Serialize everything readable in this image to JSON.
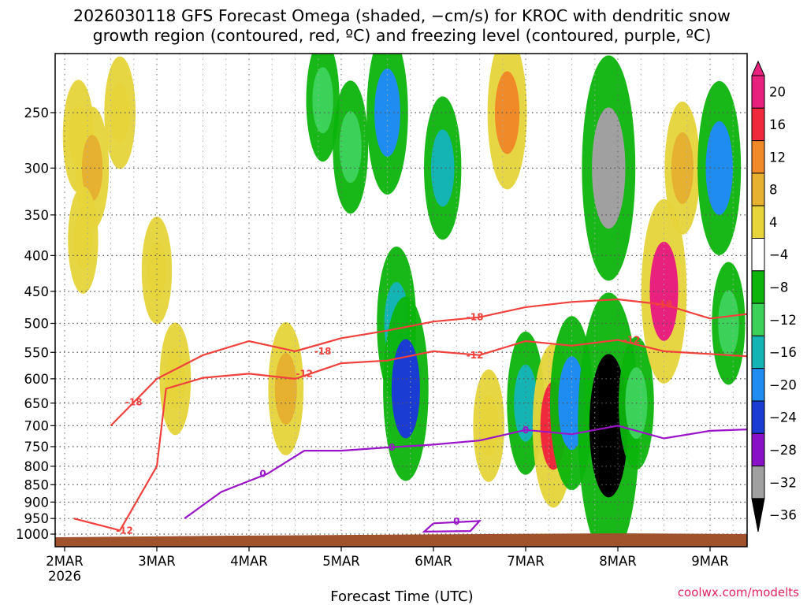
{
  "chart_data": {
    "type": "heatmap",
    "title_lines": [
      "2026030118 GFS Forecast Omega (shaded, −cm/s) for KROC with dendritic snow",
      "growth region (contoured, red, ºC) and freezing level (contoured, purple, ºC)"
    ],
    "xlabel": "Forecast Time (UTC)",
    "ylabel": "",
    "credit": "coolwx.com/modelts",
    "x_range_days": [
      0,
      7.5
    ],
    "x_ticks": [
      {
        "day": 0,
        "label": "2MAR",
        "sub": "2026"
      },
      {
        "day": 1,
        "label": "3MAR"
      },
      {
        "day": 2,
        "label": "4MAR"
      },
      {
        "day": 3,
        "label": "5MAR"
      },
      {
        "day": 4,
        "label": "6MAR"
      },
      {
        "day": 5,
        "label": "7MAR"
      },
      {
        "day": 6,
        "label": "8MAR"
      },
      {
        "day": 7,
        "label": "9MAR"
      }
    ],
    "y_range_hpa": [
      1000,
      200
    ],
    "y_ticks": [
      250,
      300,
      350,
      400,
      450,
      500,
      550,
      600,
      650,
      700,
      750,
      800,
      850,
      900,
      950,
      1000
    ],
    "y_tick_labels": [
      "250",
      "300",
      "350",
      "400",
      "450",
      "500",
      "550",
      "600",
      "650",
      "700",
      "750",
      "800",
      "850",
      "900",
      "950",
      "1000"
    ],
    "colorbar": {
      "labels": [
        "20",
        "16",
        "12",
        "8",
        "4",
        "−4",
        "−8",
        "−12",
        "−16",
        "−20",
        "−24",
        "−28",
        "−32",
        "−36"
      ],
      "colors": [
        "#e8207e",
        "#f02a3c",
        "#f08a28",
        "#e6b030",
        "#e6d43a",
        "#ffffff",
        "#0cb40c",
        "#3cd25a",
        "#14b4b4",
        "#1e8cf0",
        "#1a3cd2",
        "#8a10c8",
        "#a0a0a0",
        "#000000"
      ]
    },
    "contour_labels": [
      "-18",
      "-12",
      "0"
    ],
    "contours": {
      "dgz_top_m18": [
        [
          0.5,
          700
        ],
        [
          1.0,
          600
        ],
        [
          1.5,
          555
        ],
        [
          2.0,
          530
        ],
        [
          2.5,
          548
        ],
        [
          3.0,
          525
        ],
        [
          3.5,
          512
        ],
        [
          4.0,
          497
        ],
        [
          4.5,
          490
        ],
        [
          5.0,
          474
        ],
        [
          5.5,
          466
        ],
        [
          6.0,
          462
        ],
        [
          6.5,
          470
        ],
        [
          7.0,
          492
        ],
        [
          7.5,
          483
        ]
      ],
      "dgz_bottom_m12": [
        [
          0.1,
          950
        ],
        [
          0.6,
          988
        ],
        [
          1.0,
          800
        ],
        [
          1.1,
          620
        ],
        [
          1.5,
          598
        ],
        [
          2.0,
          590
        ],
        [
          2.5,
          600
        ],
        [
          3.0,
          570
        ],
        [
          3.5,
          565
        ],
        [
          4.0,
          548
        ],
        [
          4.5,
          555
        ],
        [
          5.0,
          530
        ],
        [
          5.5,
          538
        ],
        [
          6.0,
          528
        ],
        [
          6.5,
          548
        ],
        [
          7.0,
          553
        ],
        [
          7.5,
          558
        ]
      ],
      "freezing_0": [
        [
          1.3,
          950
        ],
        [
          1.7,
          870
        ],
        [
          2.2,
          820
        ],
        [
          2.6,
          760
        ],
        [
          3.0,
          760
        ],
        [
          3.5,
          752
        ],
        [
          4.0,
          745
        ],
        [
          4.5,
          735
        ],
        [
          5.0,
          710
        ],
        [
          5.5,
          720
        ],
        [
          6.0,
          700
        ],
        [
          6.5,
          730
        ],
        [
          7.0,
          712
        ],
        [
          7.5,
          708
        ]
      ],
      "freezing_0_low": [
        [
          4.0,
          965
        ],
        [
          4.5,
          958
        ],
        [
          4.4,
          990
        ],
        [
          3.9,
          992
        ],
        [
          4.0,
          965
        ]
      ]
    },
    "omega_cells": [
      {
        "day": 0.15,
        "p": 270,
        "omega": 6
      },
      {
        "day": 0.3,
        "p": 300,
        "omega": 8
      },
      {
        "day": 0.2,
        "p": 380,
        "omega": 5
      },
      {
        "day": 0.6,
        "p": 250,
        "omega": 6
      },
      {
        "day": 1.0,
        "p": 420,
        "omega": 5
      },
      {
        "day": 1.2,
        "p": 600,
        "omega": 6
      },
      {
        "day": 2.4,
        "p": 620,
        "omega": 10
      },
      {
        "day": 2.8,
        "p": 240,
        "omega": -8
      },
      {
        "day": 3.1,
        "p": 280,
        "omega": -10
      },
      {
        "day": 3.5,
        "p": 250,
        "omega": -16
      },
      {
        "day": 3.6,
        "p": 500,
        "omega": -14
      },
      {
        "day": 3.7,
        "p": 620,
        "omega": -20
      },
      {
        "day": 4.1,
        "p": 300,
        "omega": -12
      },
      {
        "day": 4.6,
        "p": 700,
        "omega": 6
      },
      {
        "day": 4.8,
        "p": 250,
        "omega": 14
      },
      {
        "day": 5.0,
        "p": 650,
        "omega": -12
      },
      {
        "day": 5.3,
        "p": 700,
        "omega": 16
      },
      {
        "day": 5.5,
        "p": 650,
        "omega": -18
      },
      {
        "day": 5.9,
        "p": 300,
        "omega": -28
      },
      {
        "day": 5.9,
        "p": 700,
        "omega": -36
      },
      {
        "day": 6.2,
        "p": 650,
        "omega": -10
      },
      {
        "day": 6.5,
        "p": 450,
        "omega": 20
      },
      {
        "day": 6.7,
        "p": 300,
        "omega": 10
      },
      {
        "day": 7.1,
        "p": 300,
        "omega": -18
      },
      {
        "day": 7.2,
        "p": 500,
        "omega": -8
      }
    ]
  }
}
